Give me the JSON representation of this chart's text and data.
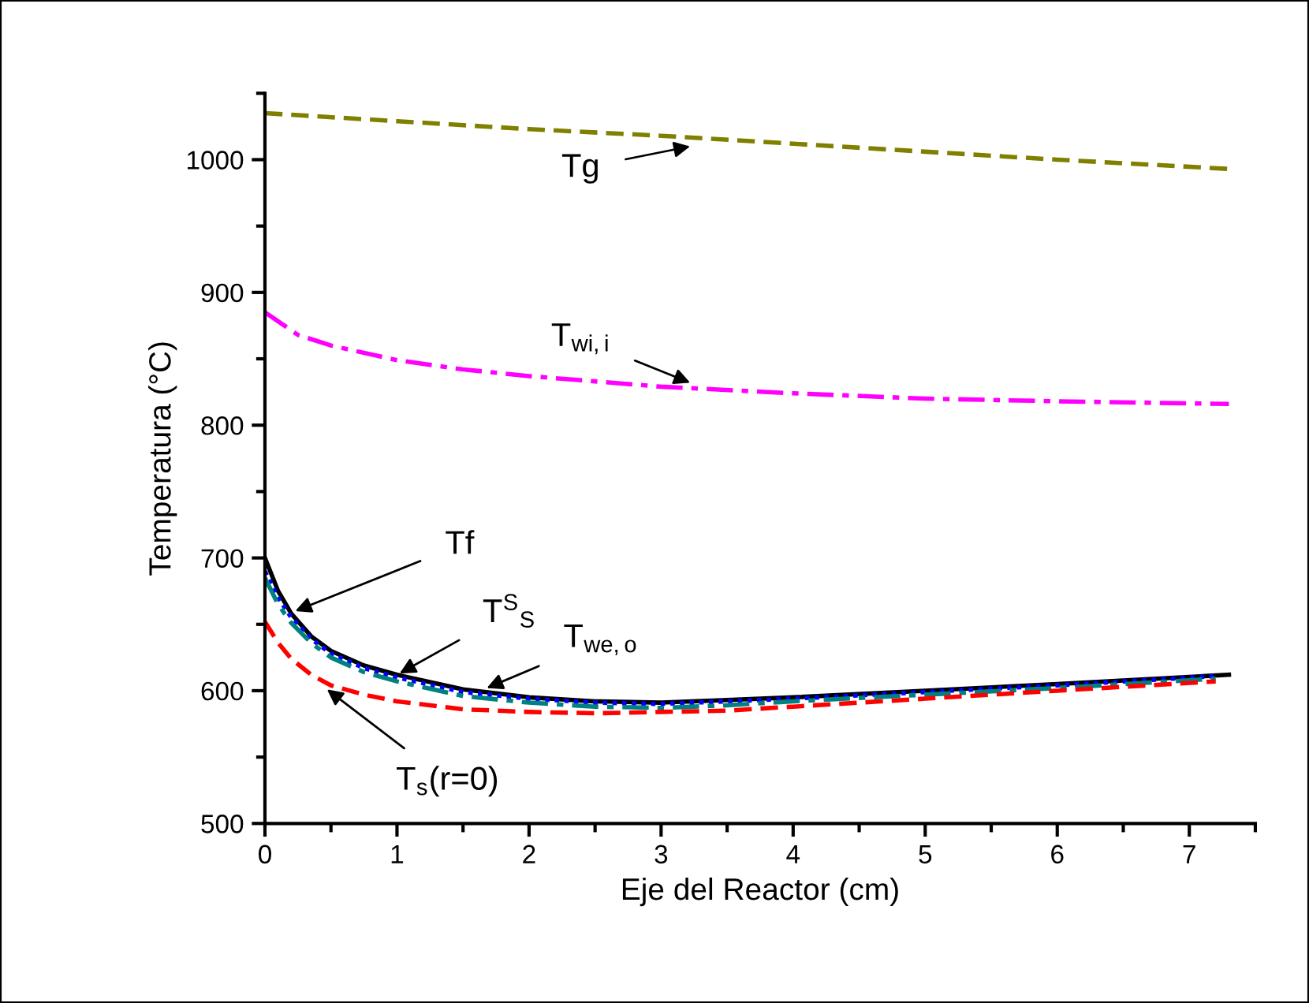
{
  "chart_data": {
    "type": "line",
    "xlabel": "Eje del Reactor (cm)",
    "ylabel": "Temperatura (°C)",
    "xlim": [
      0,
      7.5
    ],
    "ylim": [
      500,
      1050
    ],
    "xticks": [
      0,
      1,
      2,
      3,
      4,
      5,
      6,
      7
    ],
    "yticks": [
      500,
      600,
      700,
      800,
      900,
      1000
    ],
    "grid": false,
    "series": [
      {
        "color": "#808000",
        "line_style": "dashed",
        "x": [
          0,
          1,
          2,
          3,
          4,
          5,
          6,
          7.3
        ],
        "values": [
          1035,
          1029,
          1023,
          1018,
          1012,
          1006,
          1000,
          993
        ]
      },
      {
        "color": "#ff00ff",
        "line_style": "dashdot",
        "x": [
          0,
          0.25,
          0.5,
          1,
          1.5,
          2,
          3,
          4,
          5,
          6,
          7.3
        ],
        "values": [
          885,
          868,
          860,
          849,
          842,
          837,
          829,
          824,
          820,
          818,
          816
        ]
      },
      {
        "color": "#000000",
        "line_style": "solid",
        "x": [
          0,
          0.1,
          0.2,
          0.35,
          0.5,
          0.75,
          1,
          1.5,
          2,
          2.5,
          3,
          3.5,
          4,
          5,
          6,
          7.3
        ],
        "values": [
          700,
          675,
          658,
          641,
          630,
          619,
          612,
          601,
          595,
          592,
          591,
          593,
          595,
          600,
          605,
          612
        ]
      },
      {
        "color": "#0000ff",
        "line_style": "dotted",
        "x": [
          0,
          0.1,
          0.2,
          0.35,
          0.5,
          0.75,
          1,
          1.5,
          2,
          2.5,
          3,
          3.5,
          4,
          5,
          6,
          7.2
        ],
        "values": [
          690,
          670,
          655,
          639,
          628,
          617,
          610,
          599,
          594,
          591,
          590,
          592,
          594,
          599,
          604,
          611
        ]
      },
      {
        "color": "#008080",
        "line_style": "dashdot",
        "x": [
          0,
          0.1,
          0.2,
          0.35,
          0.5,
          0.75,
          1,
          1.5,
          2,
          2.5,
          3,
          3.5,
          4,
          5,
          6,
          7.2
        ],
        "values": [
          685,
          665,
          651,
          636,
          625,
          614,
          607,
          596,
          591,
          588,
          587,
          589,
          592,
          597,
          602,
          609
        ]
      },
      {
        "color": "#ff0000",
        "line_style": "dashed",
        "x": [
          0,
          0.1,
          0.2,
          0.35,
          0.5,
          0.75,
          1,
          1.5,
          2,
          2.5,
          3,
          3.5,
          4,
          5,
          6,
          7.2
        ],
        "values": [
          652,
          636,
          624,
          612,
          604,
          597,
          592,
          586,
          584,
          583,
          584,
          585,
          588,
          594,
          600,
          607
        ]
      }
    ],
    "annotations": [
      {
        "text": "Tg",
        "x": 3.22,
        "y": 1010
      },
      {
        "text": "T$_{wi,i}$",
        "x": 3.22,
        "y": 832
      },
      {
        "text": "Tf",
        "x": 0.23,
        "y": 660
      },
      {
        "text": "T$^{S}$$_{S}$",
        "x": 1.02,
        "y": 613
      },
      {
        "text": "T$_{we,o}$",
        "x": 1.68,
        "y": 602
      },
      {
        "text": "T$_{s}$(r=0)",
        "x": 0.47,
        "y": 601
      }
    ]
  }
}
